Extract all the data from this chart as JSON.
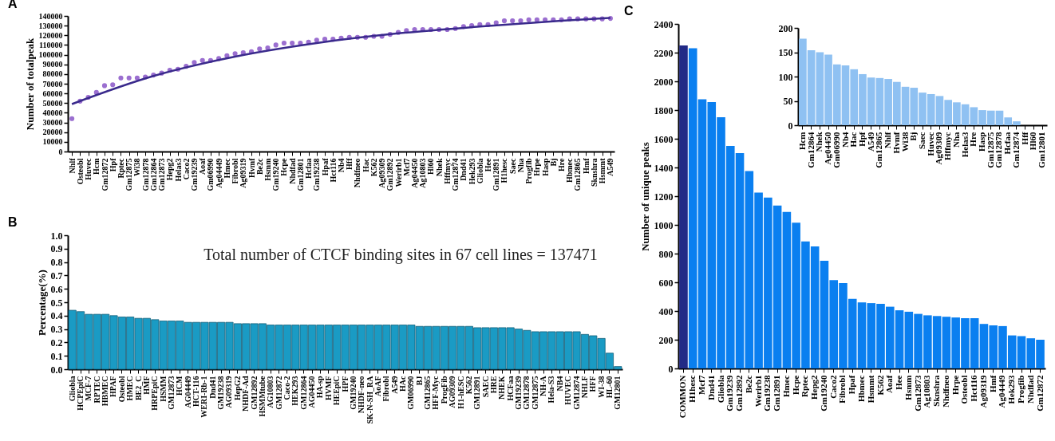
{
  "chart_data": [
    {
      "type": "scatter",
      "title": "A",
      "ylabel": "Number of totalpeak",
      "categories": [
        "Nhlf",
        "Osteobl",
        "Huvec",
        "Hcm",
        "Gm12872",
        "Hpf",
        "Rptec",
        "Gm12875",
        "Wi38",
        "Gm12878",
        "Gm12864",
        "Gm12873",
        "Hepg2",
        "Helas3",
        "Caco2",
        "Gm19239",
        "Aoaf",
        "Gm06990",
        "Ag04449",
        "Hmec",
        "Fibrobl",
        "Ag09319",
        "Hvmf",
        "Be2c",
        "Hsmm",
        "Gm19240",
        "Hcpe",
        "Nhdfad",
        "Gm12801",
        "Hcfaa",
        "Gm19238",
        "Hpaf",
        "Hct116",
        "Nb4",
        "Hff",
        "Nhdfneo",
        "Hac",
        "K562",
        "Ag09309",
        "Gm12892",
        "Werirb1",
        "Mcf7",
        "Ag04450",
        "Ag10803",
        "Hl60",
        "Nhek",
        "Hffmyc",
        "Gm12874",
        "Dnd41",
        "Hek293",
        "Gliobla",
        "Hee",
        "Gm12891",
        "H1hesc",
        "Saec",
        "Nha",
        "Progfib",
        "Hrpe",
        "Hasp",
        "Bj",
        "Hre",
        "Hbmec",
        "Gm12865",
        "Hmf",
        "Sknshra",
        "Hsmmt",
        "A549"
      ],
      "ylim": [
        0,
        140000
      ],
      "yticks": [
        0,
        10000,
        20000,
        30000,
        40000,
        50000,
        60000,
        70000,
        80000,
        90000,
        100000,
        110000,
        120000,
        130000,
        140000
      ],
      "series": [
        {
          "color": "#9b6fd0",
          "marker": "circle",
          "values": [
            34000,
            52000,
            56000,
            61000,
            68000,
            69000,
            76000,
            76000,
            76000,
            77000,
            79000,
            81000,
            84000,
            85000,
            88000,
            92000,
            94000,
            94000,
            96000,
            99000,
            101000,
            102000,
            103000,
            106000,
            107000,
            110000,
            112000,
            112000,
            112000,
            113000,
            115000,
            116000,
            116000,
            117000,
            118000,
            118000,
            118000,
            119000,
            119000,
            121000,
            123000,
            125000,
            126000,
            126000,
            126000,
            126000,
            126000,
            127000,
            129000,
            130000,
            131000,
            131000,
            133000,
            135000,
            135000,
            135000,
            136000,
            136000,
            136000,
            136000,
            136000,
            137000,
            137000,
            137000,
            137000,
            137000,
            137471
          ]
        },
        {
          "type": "line",
          "color": "#3a2a8c",
          "marker": "none",
          "line_style": "solid",
          "x": [
            "Nhlf",
            "Gm12864",
            "Fibrobl",
            "Gm19238",
            "Werirb1",
            "Gliobla",
            "Hre",
            "A549"
          ],
          "values": [
            49000,
            78000,
            98000,
            112000,
            122000,
            129000,
            135000,
            138000
          ]
        }
      ]
    },
    {
      "type": "bar",
      "title": "B",
      "ylabel": "Percentage(%)",
      "annotations": [
        "Total number of CTCF binding sites in 67 cell lines = 137471"
      ],
      "color": "#1a9bc4",
      "categories": [
        "Gliobla",
        "HCPEpiC",
        "MCF-7",
        "RPTEC",
        "HBMEC",
        "HPAF",
        "Osteobl",
        "HMEC",
        "BE2_C",
        "HMF",
        "HRPEpiC",
        "HSMM",
        "GM12873",
        "HCM",
        "AG04449",
        "HCT-116",
        "WERI-Rb-1",
        "Dnd41",
        "GM19238",
        "AG09319",
        "HepG2",
        "NHDF-Ad",
        "GM12892",
        "HSMMtube",
        "AG10803",
        "GM12872",
        "Caco-2",
        "HEK293",
        "GM12864",
        "AG04450",
        "HA-sp",
        "HVMF",
        "HEEpiC",
        "HPF",
        "GM19240",
        "NHDF-neo",
        "SK-N-SH_RA",
        "AoAF",
        "Fibrobl",
        "A549",
        "HAc",
        "GM06990",
        "BJ",
        "GM12865",
        "HFF-Myc",
        "ProgFib",
        "AG09309",
        "H1-hESC",
        "K562",
        "GM12891",
        "SAEC",
        "HRE",
        "NHEK",
        "HCFaa",
        "GM19239",
        "GM12878",
        "GM12875",
        "NH-A",
        "Hela-S3",
        "NB4",
        "HUVEC",
        "GM12874",
        "NHLF",
        "HFF",
        "WI-38",
        "HL-60",
        "GM12801"
      ],
      "values": [
        0.44,
        0.43,
        0.41,
        0.41,
        0.41,
        0.4,
        0.39,
        0.39,
        0.38,
        0.38,
        0.37,
        0.36,
        0.36,
        0.36,
        0.35,
        0.35,
        0.35,
        0.35,
        0.35,
        0.35,
        0.34,
        0.34,
        0.34,
        0.34,
        0.33,
        0.33,
        0.33,
        0.33,
        0.33,
        0.33,
        0.33,
        0.33,
        0.33,
        0.33,
        0.33,
        0.33,
        0.33,
        0.33,
        0.33,
        0.33,
        0.33,
        0.33,
        0.32,
        0.32,
        0.32,
        0.32,
        0.32,
        0.32,
        0.32,
        0.31,
        0.31,
        0.31,
        0.31,
        0.31,
        0.3,
        0.29,
        0.28,
        0.28,
        0.28,
        0.28,
        0.28,
        0.28,
        0.26,
        0.25,
        0.23,
        0.12,
        0.02
      ],
      "ylim": [
        0,
        1
      ],
      "yticks": [
        {
          "value": 0,
          "label": "0.0"
        },
        0.1,
        0.2,
        0.3,
        0.4,
        0.5,
        0.6,
        0.7,
        0.8,
        0.9,
        {
          "value": 1,
          "label": "1.0"
        }
      ]
    },
    {
      "type": "bar",
      "title": "C",
      "ylabel": "Number of unique peaks",
      "categories": [
        "COMMON",
        "H1hesc",
        "Mcf7",
        "Dnd41",
        "Gliobla",
        "Gm19239",
        "Gm12892",
        "Be2c",
        "Werirb1",
        "Gm19238",
        "Gm12891",
        "Hmec",
        "Hcpe",
        "Rptec",
        "Hepg2",
        "Gm19240",
        "Caco2",
        "Fibrobl",
        "Hpaf",
        "Hbmec",
        "Hsmmt",
        "K562",
        "Aoaf",
        "Hee",
        "Hsmm",
        "Gm12873",
        "Ag10803",
        "Sknshra",
        "Nhdfneo",
        "Hrpe",
        "Osteobl",
        "Hct116",
        "Ag09319",
        "Hmf",
        "Ag04449",
        "Hek293",
        "Progfib",
        "Nhdfad",
        "Gm12872"
      ],
      "values": [
        2250,
        2230,
        1875,
        1855,
        1750,
        1550,
        1500,
        1375,
        1225,
        1190,
        1135,
        1090,
        1015,
        885,
        850,
        750,
        615,
        595,
        485,
        460,
        455,
        450,
        430,
        405,
        395,
        380,
        370,
        365,
        360,
        355,
        350,
        350,
        310,
        300,
        295,
        230,
        225,
        210,
        200
      ],
      "colors": [
        "#222a86",
        "#0a7ff0",
        "#0a7ff0",
        "#0a7ff0",
        "#0a7ff0",
        "#0a7ff0",
        "#0a7ff0",
        "#0a7ff0",
        "#0a7ff0",
        "#0a7ff0",
        "#0a7ff0",
        "#0a7ff0",
        "#0a7ff0",
        "#0a7ff0",
        "#0a7ff0",
        "#0a7ff0",
        "#0a7ff0",
        "#0a7ff0",
        "#0a7ff0",
        "#0a7ff0",
        "#0a7ff0",
        "#0a7ff0",
        "#0a7ff0",
        "#0a7ff0",
        "#0a7ff0",
        "#0a7ff0",
        "#0a7ff0",
        "#0a7ff0",
        "#0a7ff0",
        "#0a7ff0",
        "#0a7ff0",
        "#0a7ff0",
        "#0a7ff0",
        "#0a7ff0",
        "#0a7ff0",
        "#0a7ff0",
        "#0a7ff0",
        "#0a7ff0",
        "#0a7ff0"
      ],
      "ylim": [
        0,
        2400
      ],
      "yticks": [
        0,
        200,
        400,
        600,
        800,
        1000,
        1200,
        1400,
        1600,
        1800,
        2000,
        2200,
        2400
      ]
    },
    {
      "type": "bar",
      "color": "#8fc1f2",
      "categories": [
        "Hcm",
        "Gm12864",
        "Nhek",
        "Ag04450",
        "Gm06990",
        "Nb4",
        "Hac",
        "Hpf",
        "A549",
        "Gm12865",
        "Nhlf",
        "Hvmf",
        "Wi38",
        "Bj",
        "Saec",
        "Huvec",
        "Ag09309",
        "Hffmyc",
        "Nha",
        "Helas3",
        "Hre",
        "Hasp",
        "Gm12875",
        "Gm12878",
        "Hcfaa",
        "Gm12874",
        "Hff",
        "Hl60",
        "Gm12801"
      ],
      "values": [
        178,
        154,
        150,
        145,
        125,
        123,
        115,
        105,
        98,
        97,
        95,
        89,
        79,
        77,
        67,
        64,
        60,
        52,
        47,
        43,
        37,
        31,
        30,
        30,
        16,
        8,
        0,
        0,
        0
      ],
      "ylim": [
        0,
        200
      ],
      "yticks": [
        0,
        50,
        100,
        150,
        200
      ]
    }
  ]
}
